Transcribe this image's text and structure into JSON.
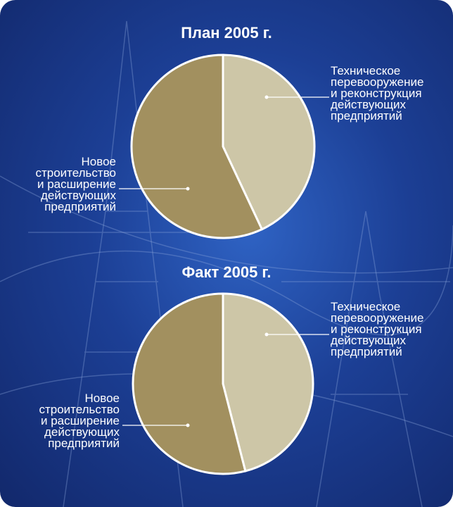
{
  "chart_data": [
    {
      "type": "pie",
      "title": "План 2005 г.",
      "categories": [
        "Техническое\nперевооружение\nи реконструкция\nдействующих\nпредприятий",
        "Новое\nстроительство\nи расширение\nдействующих\nпредприятий"
      ],
      "values": [
        43,
        57
      ],
      "colors": [
        "#cdc6a7",
        "#a2905f"
      ]
    },
    {
      "type": "pie",
      "title": "Факт 2005 г.",
      "categories": [
        "Техническое\nперевооружение\nи реконструкция\nдействующих\nпредприятий",
        "Новое\nстроительство\nи расширение\nдействующих\nпредприятий"
      ],
      "values": [
        46,
        54
      ],
      "colors": [
        "#cdc6a7",
        "#a2905f"
      ]
    }
  ]
}
